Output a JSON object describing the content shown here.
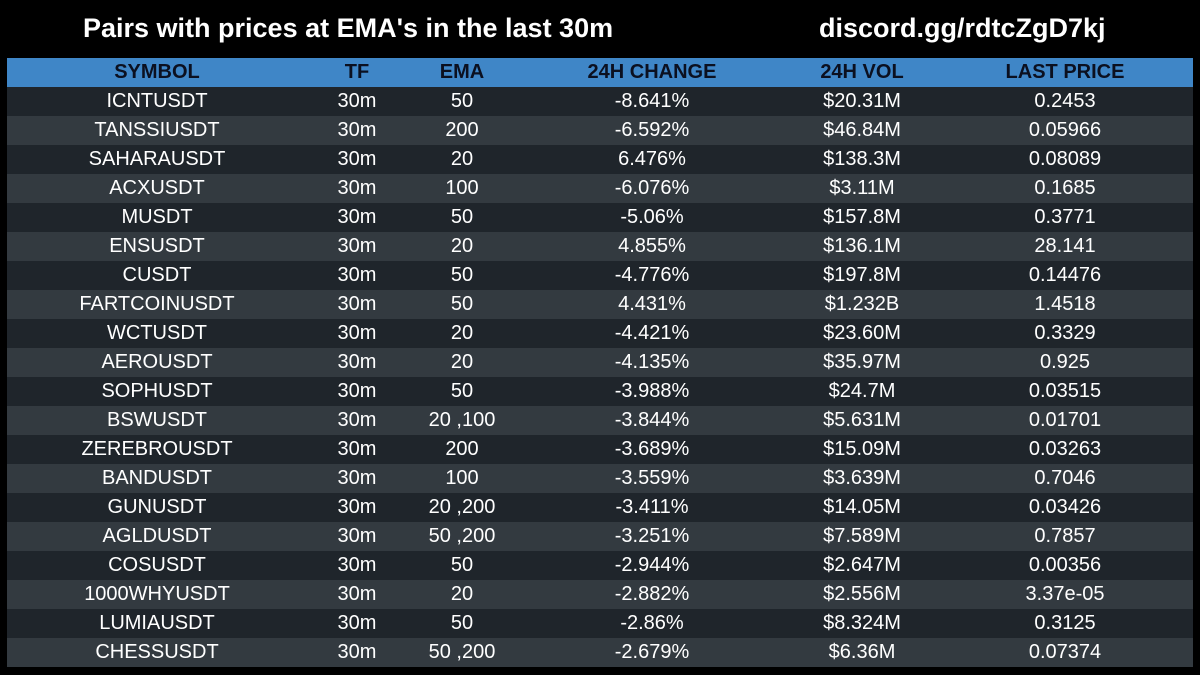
{
  "header": {
    "title": "Pairs with prices at EMA's in the last 30m",
    "link": "discord.gg/rdtcZgD7kj"
  },
  "table": {
    "columns": [
      "SYMBOL",
      "TF",
      "EMA",
      "24H CHANGE",
      "24H VOL",
      "LAST PRICE"
    ],
    "rows": [
      [
        "ICNTUSDT",
        "30m",
        "50",
        "-8.641%",
        "$20.31M",
        "0.2453"
      ],
      [
        "TANSSIUSDT",
        "30m",
        "200",
        "-6.592%",
        "$46.84M",
        "0.05966"
      ],
      [
        "SAHARAUSDT",
        "30m",
        "20",
        "6.476%",
        "$138.3M",
        "0.08089"
      ],
      [
        "ACXUSDT",
        "30m",
        "100",
        "-6.076%",
        "$3.11M",
        "0.1685"
      ],
      [
        "MUSDT",
        "30m",
        "50",
        "-5.06%",
        "$157.8M",
        "0.3771"
      ],
      [
        "ENSUSDT",
        "30m",
        "20",
        "4.855%",
        "$136.1M",
        "28.141"
      ],
      [
        "CUSDT",
        "30m",
        "50",
        "-4.776%",
        "$197.8M",
        "0.14476"
      ],
      [
        "FARTCOINUSDT",
        "30m",
        "50",
        "4.431%",
        "$1.232B",
        "1.4518"
      ],
      [
        "WCTUSDT",
        "30m",
        "20",
        "-4.421%",
        "$23.60M",
        "0.3329"
      ],
      [
        "AEROUSDT",
        "30m",
        "20",
        "-4.135%",
        "$35.97M",
        "0.925"
      ],
      [
        "SOPHUSDT",
        "30m",
        "50",
        "-3.988%",
        "$24.7M",
        "0.03515"
      ],
      [
        "BSWUSDT",
        "30m",
        "20 ,100",
        "-3.844%",
        "$5.631M",
        "0.01701"
      ],
      [
        "ZEREBROUSDT",
        "30m",
        "200",
        "-3.689%",
        "$15.09M",
        "0.03263"
      ],
      [
        "BANDUSDT",
        "30m",
        "100",
        "-3.559%",
        "$3.639M",
        "0.7046"
      ],
      [
        "GUNUSDT",
        "30m",
        "20 ,200",
        "-3.411%",
        "$14.05M",
        "0.03426"
      ],
      [
        "AGLDUSDT",
        "30m",
        "50 ,200",
        "-3.251%",
        "$7.589M",
        "0.7857"
      ],
      [
        "COSUSDT",
        "30m",
        "50",
        "-2.944%",
        "$2.647M",
        "0.00356"
      ],
      [
        "1000WHYUSDT",
        "30m",
        "20",
        "-2.882%",
        "$2.556M",
        "3.37e-05"
      ],
      [
        "LUMIAUSDT",
        "30m",
        "50",
        "-2.86%",
        "$8.324M",
        "0.3125"
      ],
      [
        "CHESSUSDT",
        "30m",
        "50 ,200",
        "-2.679%",
        "$6.36M",
        "0.07374"
      ]
    ]
  },
  "colors": {
    "background": "#000000",
    "header_row": "#3f86c7",
    "row_dark": "#1f252b",
    "row_light": "#333a40",
    "text": "#ffffff",
    "header_text": "#0b1020"
  }
}
